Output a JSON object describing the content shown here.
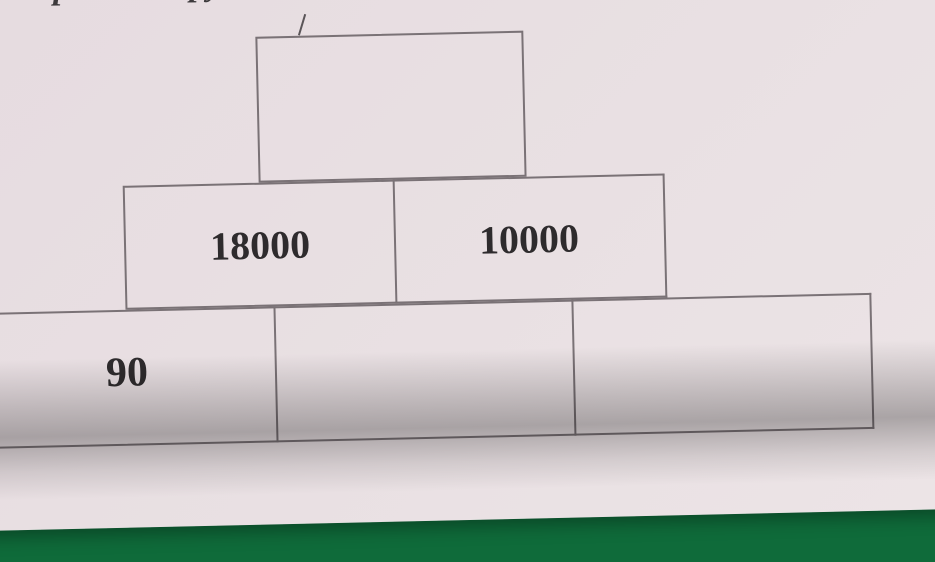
{
  "title_text": "s multiplication pyramid.",
  "pyramid": {
    "type": "pyramid",
    "border_color": "#7a7276",
    "paper_color": "#e8dfe2",
    "text_color": "#2e2b2d",
    "title_fontsize": 34,
    "value_fontsize": 40,
    "rows": [
      {
        "cells": [
          {
            "value": ""
          }
        ]
      },
      {
        "cells": [
          {
            "value": "18000"
          },
          {
            "value": "10000"
          }
        ]
      },
      {
        "cells": [
          {
            "value": "90"
          },
          {
            "value": ""
          },
          {
            "value": ""
          }
        ]
      }
    ]
  }
}
